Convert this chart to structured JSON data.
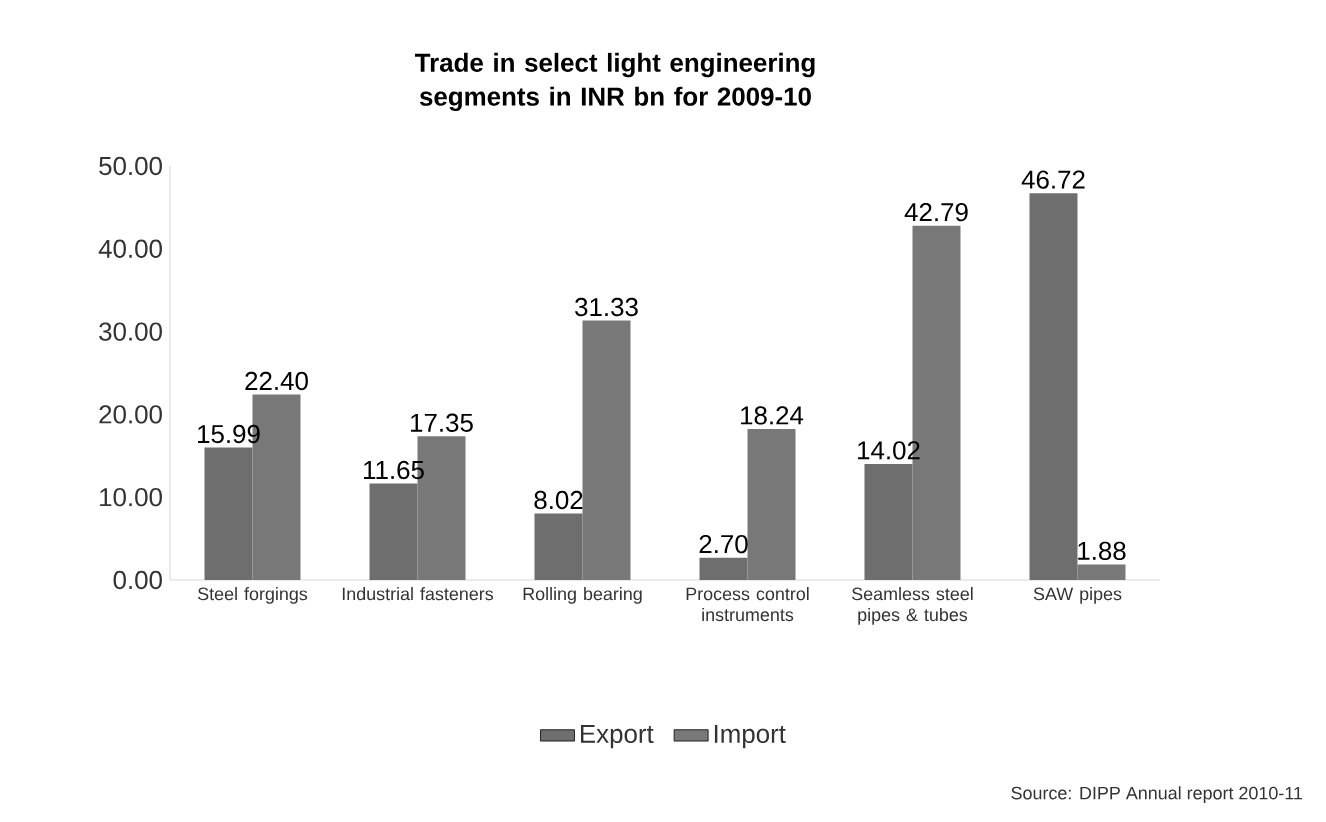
{
  "chart_data": {
    "type": "bar",
    "title": "Trade in select light engineering segments in INR bn for 2009-10",
    "categories": [
      "Steel forgings",
      "Industrial fasteners",
      "Rolling bearing",
      "Process control instruments",
      "Seamless steel pipes & tubes",
      "SAW pipes"
    ],
    "series": [
      {
        "name": "Export",
        "color": "#6e6e6e",
        "values": [
          15.99,
          11.65,
          8.02,
          2.7,
          14.02,
          46.72
        ],
        "value_labels": [
          "15.99",
          "11.65",
          "8.02",
          "2.70",
          "14.02",
          "46.72"
        ]
      },
      {
        "name": "Import",
        "color": "#787878",
        "values": [
          22.4,
          17.35,
          31.33,
          18.24,
          42.79,
          1.88
        ],
        "value_labels": [
          "22.40",
          "17.35",
          "31.33",
          "18.24",
          "42.79",
          "1.88"
        ]
      }
    ],
    "ylim": [
      0,
      50
    ],
    "yticks": [
      {
        "value": 0,
        "label": "0.00"
      },
      {
        "value": 10,
        "label": "10.00"
      },
      {
        "value": 20,
        "label": "20.00"
      },
      {
        "value": 30,
        "label": "30.00"
      },
      {
        "value": 40,
        "label": "40.00"
      },
      {
        "value": 50,
        "label": "50.00"
      }
    ],
    "grid": false,
    "legend": "bottom",
    "annotations": [
      "Source: DIPP Annual report 2010-11"
    ]
  }
}
